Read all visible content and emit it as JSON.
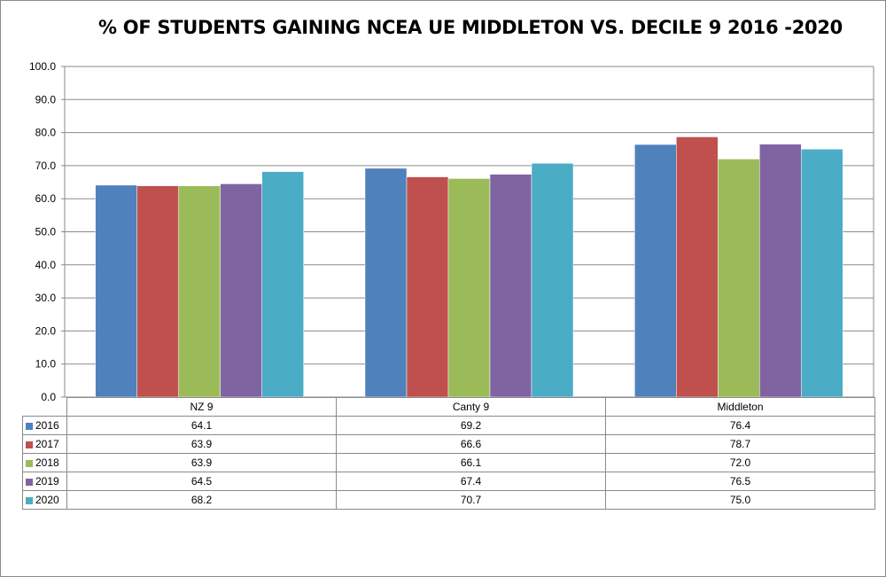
{
  "chart_data": {
    "type": "bar",
    "title": "% OF STUDENTS GAINING NCEA UE MIDDLETON VS. DECILE 9 2016 -2020",
    "categories": [
      "NZ 9",
      "Canty 9",
      "Middleton"
    ],
    "series": [
      {
        "name": "2016",
        "color": "#4f81bd",
        "values": [
          64.1,
          69.2,
          76.4
        ]
      },
      {
        "name": "2017",
        "color": "#c0504d",
        "values": [
          63.9,
          66.6,
          78.7
        ]
      },
      {
        "name": "2018",
        "color": "#9bbb59",
        "values": [
          63.9,
          66.1,
          72.0
        ]
      },
      {
        "name": "2019",
        "color": "#8064a2",
        "values": [
          64.5,
          67.4,
          76.5
        ]
      },
      {
        "name": "2020",
        "color": "#4bacc6",
        "values": [
          68.2,
          70.7,
          75.0
        ]
      }
    ],
    "ylim": [
      0,
      100
    ],
    "yticks": [
      "0.0",
      "10.0",
      "20.0",
      "30.0",
      "40.0",
      "50.0",
      "60.0",
      "70.0",
      "80.0",
      "90.0",
      "100.0"
    ],
    "grid": true,
    "legend": "data-table",
    "xlabel": "",
    "ylabel": ""
  }
}
